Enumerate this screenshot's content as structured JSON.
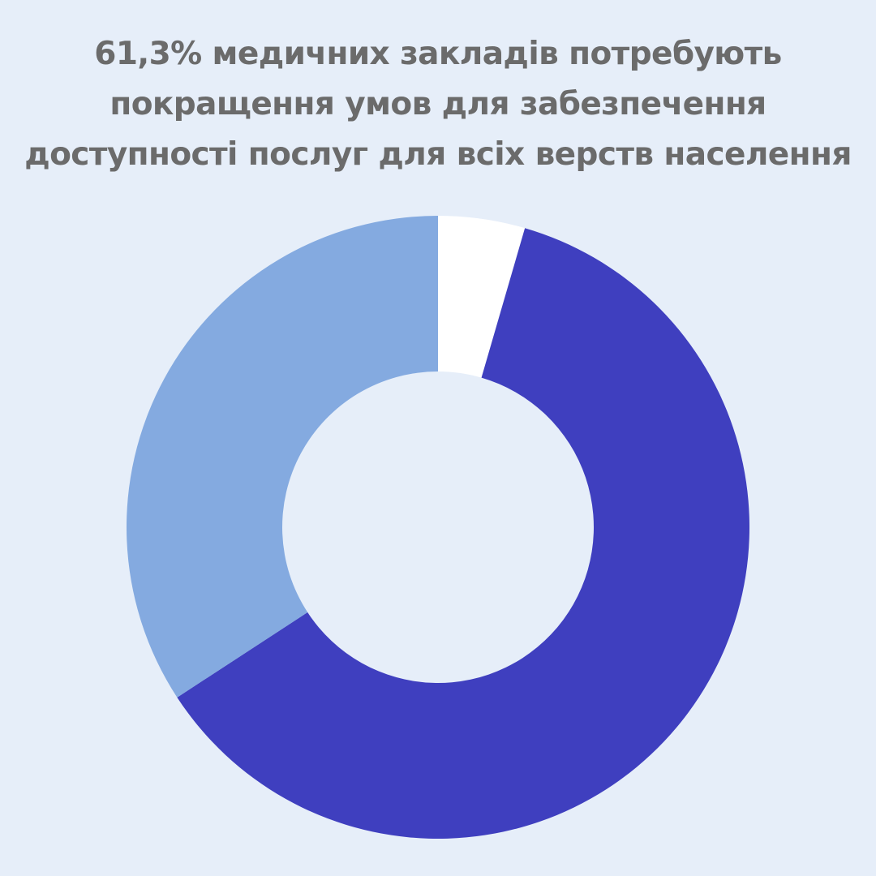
{
  "title_lines": [
    "61,3% медичних закладів потребують",
    "покращення умов для забезпечення",
    "доступності послуг для всіх верств населення"
  ],
  "colors": {
    "background": "#e6eef9",
    "title": "#6b6b6b"
  },
  "chart_data": {
    "type": "pie",
    "donut": true,
    "start_angle_deg": 0,
    "direction": "clockwise",
    "slices": [
      {
        "value": 4.5,
        "color": "#ffffff"
      },
      {
        "value": 61.3,
        "color": "#3f3fbf"
      },
      {
        "value": 34.2,
        "color": "#84aae0"
      }
    ]
  }
}
